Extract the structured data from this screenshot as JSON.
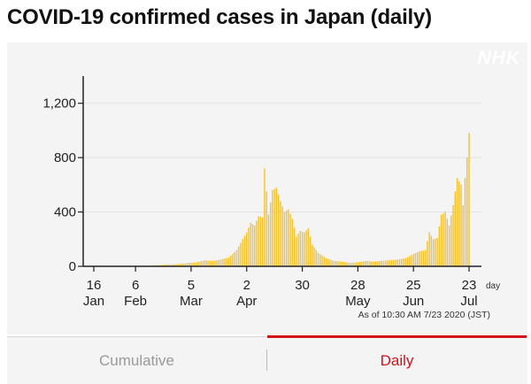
{
  "title": "COVID-19 confirmed cases in Japan (daily)",
  "logo": "NHK",
  "as_of": "As of 10:30 AM 7/23 2020 (JST)",
  "tabs": {
    "cumulative": "Cumulative",
    "daily": "Daily",
    "selected": "daily"
  },
  "colors": {
    "bar": "#f2c12e",
    "active_tab": "#d0121b",
    "inactive_tab": "#9a9a9a"
  },
  "chart_data": {
    "type": "bar",
    "title": "COVID-19 confirmed cases in Japan (daily)",
    "xlabel": "day",
    "ylabel": "",
    "ylim": [
      0,
      1400
    ],
    "yticks": [
      0,
      400,
      800,
      1200
    ],
    "ytick_labels": [
      "0",
      "400",
      "800",
      "1,200"
    ],
    "xticks": [
      {
        "date": "2020-01-16",
        "day": "16",
        "month": "Jan"
      },
      {
        "date": "2020-02-06",
        "day": "6",
        "month": "Feb"
      },
      {
        "date": "2020-03-05",
        "day": "5",
        "month": "Mar"
      },
      {
        "date": "2020-04-02",
        "day": "2",
        "month": "Apr"
      },
      {
        "date": "2020-04-30",
        "day": "30",
        "month": ""
      },
      {
        "date": "2020-05-28",
        "day": "28",
        "month": "May"
      },
      {
        "date": "2020-06-25",
        "day": "25",
        "month": "Jun"
      },
      {
        "date": "2020-07-23",
        "day": "23",
        "month": "Jul"
      }
    ],
    "x_range": [
      "2020-01-16",
      "2020-07-23"
    ],
    "series": [
      {
        "points": [
          [
            "2020-01-16",
            1
          ],
          [
            "2020-01-20",
            0
          ],
          [
            "2020-01-24",
            1
          ],
          [
            "2020-01-28",
            3
          ],
          [
            "2020-02-01",
            2
          ],
          [
            "2020-02-05",
            3
          ],
          [
            "2020-02-09",
            2
          ],
          [
            "2020-02-13",
            5
          ],
          [
            "2020-02-17",
            8
          ],
          [
            "2020-02-21",
            12
          ],
          [
            "2020-02-25",
            15
          ],
          [
            "2020-02-29",
            18
          ],
          [
            "2020-03-04",
            25
          ],
          [
            "2020-03-08",
            30
          ],
          [
            "2020-03-12",
            45
          ],
          [
            "2020-03-16",
            40
          ],
          [
            "2020-03-20",
            50
          ],
          [
            "2020-03-24",
            65
          ],
          [
            "2020-03-28",
            120
          ],
          [
            "2020-03-31",
            200
          ],
          [
            "2020-04-02",
            250
          ],
          [
            "2020-04-04",
            320
          ],
          [
            "2020-04-06",
            300
          ],
          [
            "2020-04-08",
            370
          ],
          [
            "2020-04-10",
            360
          ],
          [
            "2020-04-11",
            720
          ],
          [
            "2020-04-13",
            380
          ],
          [
            "2020-04-15",
            560
          ],
          [
            "2020-04-17",
            580
          ],
          [
            "2020-04-19",
            480
          ],
          [
            "2020-04-21",
            400
          ],
          [
            "2020-04-23",
            420
          ],
          [
            "2020-04-25",
            350
          ],
          [
            "2020-04-27",
            220
          ],
          [
            "2020-04-29",
            260
          ],
          [
            "2020-05-01",
            250
          ],
          [
            "2020-05-03",
            280
          ],
          [
            "2020-05-05",
            160
          ],
          [
            "2020-05-08",
            100
          ],
          [
            "2020-05-12",
            60
          ],
          [
            "2020-05-16",
            40
          ],
          [
            "2020-05-20",
            35
          ],
          [
            "2020-05-24",
            25
          ],
          [
            "2020-05-28",
            30
          ],
          [
            "2020-06-01",
            40
          ],
          [
            "2020-06-05",
            35
          ],
          [
            "2020-06-09",
            40
          ],
          [
            "2020-06-13",
            45
          ],
          [
            "2020-06-17",
            50
          ],
          [
            "2020-06-21",
            60
          ],
          [
            "2020-06-25",
            90
          ],
          [
            "2020-06-28",
            110
          ],
          [
            "2020-07-01",
            120
          ],
          [
            "2020-07-03",
            250
          ],
          [
            "2020-07-05",
            200
          ],
          [
            "2020-07-07",
            210
          ],
          [
            "2020-07-09",
            380
          ],
          [
            "2020-07-11",
            400
          ],
          [
            "2020-07-13",
            300
          ],
          [
            "2020-07-15",
            450
          ],
          [
            "2020-07-17",
            650
          ],
          [
            "2020-07-19",
            600
          ],
          [
            "2020-07-20",
            450
          ],
          [
            "2020-07-21",
            650
          ],
          [
            "2020-07-22",
            800
          ],
          [
            "2020-07-23",
            980
          ]
        ]
      }
    ]
  }
}
